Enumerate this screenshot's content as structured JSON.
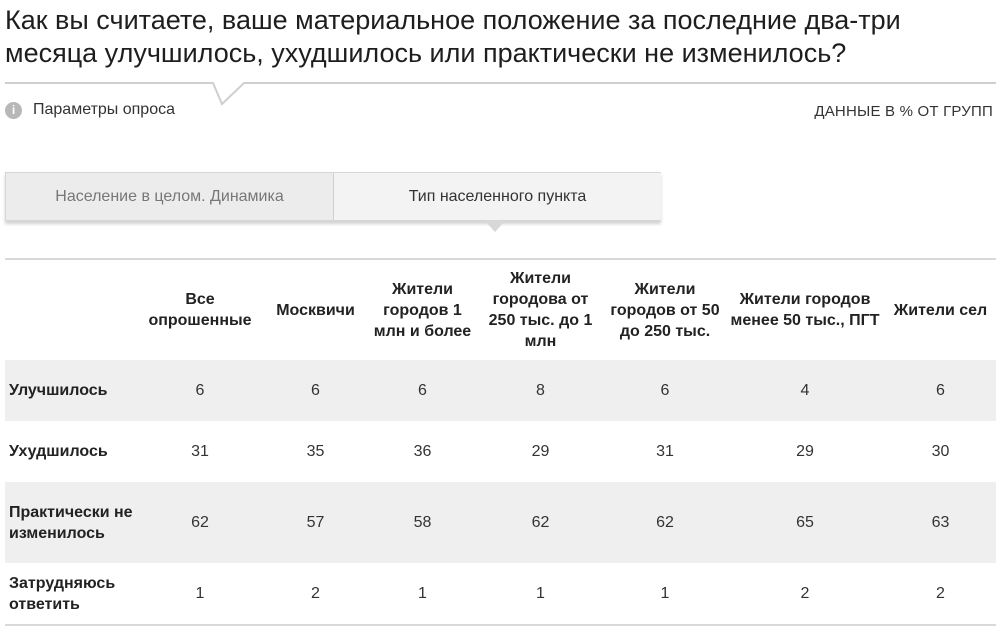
{
  "title": "Как вы считаете, ваше материальное положение за последние два-три месяца улучшилось, ухудшилось или практически не изменилось?",
  "params": {
    "icon": "info-icon",
    "label": "Параметры опроса"
  },
  "units_label": "ДАННЫЕ В % ОТ ГРУПП",
  "tabs": [
    {
      "label": "Население в целом. Динамика",
      "active": false
    },
    {
      "label": "Тип населенного пункта",
      "active": true
    }
  ],
  "table": {
    "columns": [
      "Все опрошенные",
      "Москвичи",
      "Жители городов 1 млн и более",
      "Жители городова от 250 тыс. до 1 млн",
      "Жители городов от 50 до 250 тыс.",
      "Жители городов менее 50 тыс., ПГТ",
      "Жители сел"
    ],
    "rows": [
      {
        "label": "Улучшилось",
        "values": [
          "6",
          "6",
          "6",
          "8",
          "6",
          "4",
          "6"
        ]
      },
      {
        "label": "Ухудшилось",
        "values": [
          "31",
          "35",
          "36",
          "29",
          "31",
          "29",
          "30"
        ]
      },
      {
        "label": "Практически не изменилось",
        "values": [
          "62",
          "57",
          "58",
          "62",
          "62",
          "65",
          "63"
        ]
      },
      {
        "label": "Затрудняюсь ответить",
        "values": [
          "1",
          "2",
          "1",
          "1",
          "1",
          "2",
          "2"
        ]
      }
    ]
  },
  "colors": {
    "stripe": "#efefef",
    "rule": "#d9d9d9",
    "tab_bg": "#ececec"
  }
}
